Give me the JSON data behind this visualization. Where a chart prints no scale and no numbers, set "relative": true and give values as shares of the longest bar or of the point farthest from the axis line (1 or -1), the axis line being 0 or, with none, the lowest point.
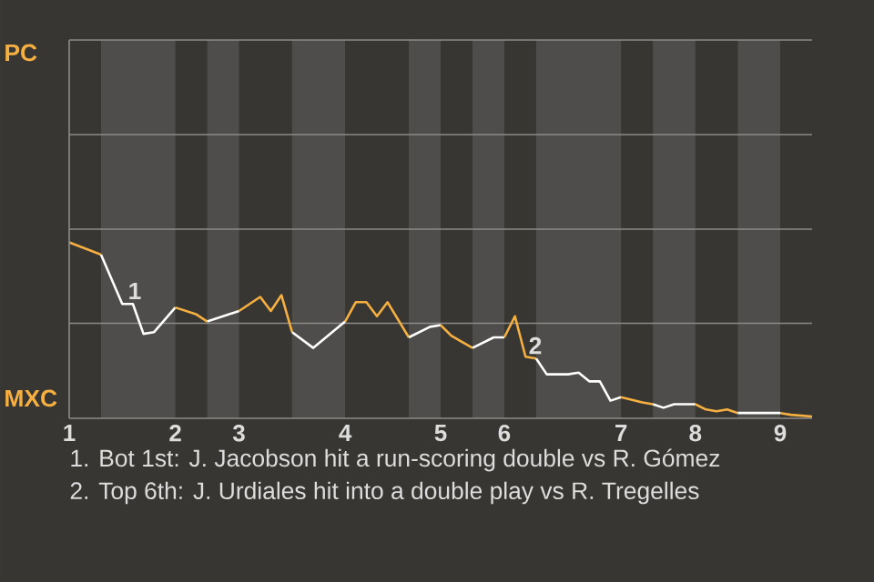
{
  "chart_data": {
    "type": "line",
    "relative": true,
    "ref_lines": [
      {
        "axis": "y",
        "value": 0.54,
        "color": "#8c8b89"
      }
    ],
    "categories": [
      "1",
      null,
      null,
      null,
      null,
      null,
      null,
      null,
      null,
      null,
      "2",
      null,
      null,
      null,
      null,
      null,
      "3",
      null,
      null,
      null,
      null,
      null,
      null,
      null,
      null,
      null,
      "4",
      null,
      null,
      null,
      null,
      null,
      null,
      null,
      null,
      "5",
      null,
      null,
      null,
      null,
      null,
      "6",
      null,
      null,
      null,
      null,
      null,
      null,
      null,
      null,
      null,
      null,
      "7",
      null,
      null,
      null,
      null,
      null,
      null,
      "8",
      null,
      null,
      null,
      null,
      null,
      null,
      null,
      "9",
      null,
      null,
      null
    ],
    "series": [
      {
        "color": "#f5b041",
        "values": [
          1,
          null,
          null,
          0.93,
          null,
          null,
          null,
          null,
          null,
          null,
          null,
          null,
          null,
          null,
          null,
          null,
          null,
          null,
          null,
          null,
          null,
          null,
          null,
          null,
          null,
          null,
          null,
          null,
          null,
          null,
          null,
          null,
          null,
          null,
          null,
          null,
          null,
          null,
          null,
          null,
          null,
          null,
          null,
          null,
          null,
          null,
          null,
          null,
          null,
          null,
          null,
          null,
          null,
          null,
          null,
          null,
          null,
          null,
          null,
          null,
          null,
          null,
          null,
          null,
          null,
          null,
          null,
          null,
          null,
          null,
          null
        ]
      },
      {
        "color": "#ffffff",
        "values": [
          null,
          null,
          null,
          0.93,
          null,
          0.65,
          0.65,
          0.48,
          0.49,
          null,
          0.63,
          null,
          null,
          null,
          null,
          null,
          null,
          null,
          null,
          null,
          null,
          null,
          null,
          null,
          null,
          null,
          null,
          null,
          null,
          null,
          null,
          null,
          null,
          null,
          null,
          null,
          null,
          null,
          null,
          null,
          null,
          null,
          null,
          null,
          null,
          null,
          null,
          null,
          null,
          null,
          null,
          null,
          null,
          null,
          null,
          null,
          null,
          null,
          null,
          null,
          null,
          null,
          null,
          null,
          null,
          null,
          null,
          null,
          null,
          null,
          null
        ]
      },
      {
        "color": "#f5b041",
        "values": [
          null,
          null,
          null,
          null,
          null,
          null,
          null,
          null,
          null,
          null,
          0.63,
          null,
          0.59,
          0.55,
          null,
          null,
          null,
          null,
          null,
          null,
          null,
          null,
          null,
          null,
          null,
          null,
          null,
          null,
          null,
          null,
          null,
          null,
          null,
          null,
          null,
          null,
          null,
          null,
          null,
          null,
          null,
          null,
          null,
          null,
          null,
          null,
          null,
          null,
          null,
          null,
          null,
          null,
          null,
          null,
          null,
          null,
          null,
          null,
          null,
          null,
          null,
          null,
          null,
          null,
          null,
          null,
          null,
          null,
          null,
          null,
          null
        ]
      },
      {
        "color": "#ffffff",
        "values": [
          null,
          null,
          null,
          null,
          null,
          null,
          null,
          null,
          null,
          null,
          null,
          null,
          null,
          0.55,
          null,
          null,
          0.61,
          null,
          null,
          null,
          null,
          null,
          null,
          null,
          null,
          null,
          null,
          null,
          null,
          null,
          null,
          null,
          null,
          null,
          null,
          null,
          null,
          null,
          null,
          null,
          null,
          null,
          null,
          null,
          null,
          null,
          null,
          null,
          null,
          null,
          null,
          null,
          null,
          null,
          null,
          null,
          null,
          null,
          null,
          null,
          null,
          null,
          null,
          null,
          null,
          null,
          null,
          null,
          null,
          null,
          null
        ]
      },
      {
        "color": "#f5b041",
        "values": [
          null,
          null,
          null,
          null,
          null,
          null,
          null,
          null,
          null,
          null,
          null,
          null,
          null,
          null,
          null,
          null,
          0.61,
          null,
          0.69,
          0.61,
          0.7,
          0.49,
          null,
          null,
          null,
          null,
          null,
          null,
          null,
          null,
          null,
          null,
          null,
          null,
          null,
          null,
          null,
          null,
          null,
          null,
          null,
          null,
          null,
          null,
          null,
          null,
          null,
          null,
          null,
          null,
          null,
          null,
          null,
          null,
          null,
          null,
          null,
          null,
          null,
          null,
          null,
          null,
          null,
          null,
          null,
          null,
          null,
          null,
          null,
          null,
          null
        ]
      },
      {
        "color": "#ffffff",
        "values": [
          null,
          null,
          null,
          null,
          null,
          null,
          null,
          null,
          null,
          null,
          null,
          null,
          null,
          null,
          null,
          null,
          null,
          null,
          null,
          null,
          null,
          0.49,
          null,
          0.4,
          null,
          null,
          0.55,
          null,
          null,
          null,
          null,
          null,
          null,
          null,
          null,
          null,
          null,
          null,
          null,
          null,
          null,
          null,
          null,
          null,
          null,
          null,
          null,
          null,
          null,
          null,
          null,
          null,
          null,
          null,
          null,
          null,
          null,
          null,
          null,
          null,
          null,
          null,
          null,
          null,
          null,
          null,
          null,
          null,
          null,
          null,
          null
        ]
      },
      {
        "color": "#f5b041",
        "values": [
          null,
          null,
          null,
          null,
          null,
          null,
          null,
          null,
          null,
          null,
          null,
          null,
          null,
          null,
          null,
          null,
          null,
          null,
          null,
          null,
          null,
          null,
          null,
          null,
          null,
          null,
          0.55,
          0.66,
          0.66,
          0.58,
          0.66,
          null,
          0.46,
          null,
          null,
          null,
          null,
          null,
          null,
          null,
          null,
          null,
          null,
          null,
          null,
          null,
          null,
          null,
          null,
          null,
          null,
          null,
          null,
          null,
          null,
          null,
          null,
          null,
          null,
          null,
          null,
          null,
          null,
          null,
          null,
          null,
          null,
          null,
          null,
          null,
          null
        ]
      },
      {
        "color": "#ffffff",
        "values": [
          null,
          null,
          null,
          null,
          null,
          null,
          null,
          null,
          null,
          null,
          null,
          null,
          null,
          null,
          null,
          null,
          null,
          null,
          null,
          null,
          null,
          null,
          null,
          null,
          null,
          null,
          null,
          null,
          null,
          null,
          null,
          null,
          0.46,
          null,
          0.52,
          0.53,
          null,
          null,
          null,
          null,
          null,
          null,
          null,
          null,
          null,
          null,
          null,
          null,
          null,
          null,
          null,
          null,
          null,
          null,
          null,
          null,
          null,
          null,
          null,
          null,
          null,
          null,
          null,
          null,
          null,
          null,
          null,
          null,
          null,
          null,
          null
        ]
      },
      {
        "color": "#f5b041",
        "values": [
          null,
          null,
          null,
          null,
          null,
          null,
          null,
          null,
          null,
          null,
          null,
          null,
          null,
          null,
          null,
          null,
          null,
          null,
          null,
          null,
          null,
          null,
          null,
          null,
          null,
          null,
          null,
          null,
          null,
          null,
          null,
          null,
          null,
          null,
          null,
          0.53,
          0.47,
          null,
          0.4,
          null,
          null,
          null,
          null,
          null,
          null,
          null,
          null,
          null,
          null,
          null,
          null,
          null,
          null,
          null,
          null,
          null,
          null,
          null,
          null,
          null,
          null,
          null,
          null,
          null,
          null,
          null,
          null,
          null,
          null,
          null,
          null
        ]
      },
      {
        "color": "#ffffff",
        "values": [
          null,
          null,
          null,
          null,
          null,
          null,
          null,
          null,
          null,
          null,
          null,
          null,
          null,
          null,
          null,
          null,
          null,
          null,
          null,
          null,
          null,
          null,
          null,
          null,
          null,
          null,
          null,
          null,
          null,
          null,
          null,
          null,
          null,
          null,
          null,
          null,
          null,
          null,
          0.4,
          null,
          0.46,
          0.46,
          null,
          null,
          null,
          null,
          null,
          null,
          null,
          null,
          null,
          null,
          null,
          null,
          null,
          null,
          null,
          null,
          null,
          null,
          null,
          null,
          null,
          null,
          null,
          null,
          null,
          null,
          null,
          null,
          null
        ]
      },
      {
        "color": "#f5b041",
        "values": [
          null,
          null,
          null,
          null,
          null,
          null,
          null,
          null,
          null,
          null,
          null,
          null,
          null,
          null,
          null,
          null,
          null,
          null,
          null,
          null,
          null,
          null,
          null,
          null,
          null,
          null,
          null,
          null,
          null,
          null,
          null,
          null,
          null,
          null,
          null,
          null,
          null,
          null,
          null,
          null,
          null,
          0.46,
          0.58,
          0.35,
          0.34,
          null,
          null,
          null,
          null,
          null,
          null,
          null,
          null,
          null,
          null,
          null,
          null,
          null,
          null,
          null,
          null,
          null,
          null,
          null,
          null,
          null,
          null,
          null,
          null,
          null,
          null
        ]
      },
      {
        "color": "#ffffff",
        "values": [
          null,
          null,
          null,
          null,
          null,
          null,
          null,
          null,
          null,
          null,
          null,
          null,
          null,
          null,
          null,
          null,
          null,
          null,
          null,
          null,
          null,
          null,
          null,
          null,
          null,
          null,
          null,
          null,
          null,
          null,
          null,
          null,
          null,
          null,
          null,
          null,
          null,
          null,
          null,
          null,
          null,
          null,
          null,
          null,
          0.34,
          0.25,
          null,
          0.25,
          0.26,
          0.21,
          0.21,
          0.1,
          0.12,
          null,
          null,
          null,
          null,
          null,
          null,
          null,
          null,
          null,
          null,
          null,
          null,
          null,
          null,
          null,
          null,
          null,
          null
        ]
      },
      {
        "color": "#f5b041",
        "values": [
          null,
          null,
          null,
          null,
          null,
          null,
          null,
          null,
          null,
          null,
          null,
          null,
          null,
          null,
          null,
          null,
          null,
          null,
          null,
          null,
          null,
          null,
          null,
          null,
          null,
          null,
          null,
          null,
          null,
          null,
          null,
          null,
          null,
          null,
          null,
          null,
          null,
          null,
          null,
          null,
          null,
          null,
          null,
          null,
          null,
          null,
          null,
          null,
          null,
          null,
          null,
          null,
          0.12,
          null,
          0.09,
          0.08,
          null,
          null,
          null,
          null,
          null,
          null,
          null,
          null,
          null,
          null,
          null,
          null,
          null,
          null,
          null
        ]
      },
      {
        "color": "#ffffff",
        "values": [
          null,
          null,
          null,
          null,
          null,
          null,
          null,
          null,
          null,
          null,
          null,
          null,
          null,
          null,
          null,
          null,
          null,
          null,
          null,
          null,
          null,
          null,
          null,
          null,
          null,
          null,
          null,
          null,
          null,
          null,
          null,
          null,
          null,
          null,
          null,
          null,
          null,
          null,
          null,
          null,
          null,
          null,
          null,
          null,
          null,
          null,
          null,
          null,
          null,
          null,
          null,
          null,
          null,
          null,
          null,
          0.08,
          0.06,
          0.08,
          null,
          0.08,
          null,
          null,
          null,
          null,
          null,
          null,
          null,
          null,
          null,
          null,
          null
        ]
      },
      {
        "color": "#f5b041",
        "values": [
          null,
          null,
          null,
          null,
          null,
          null,
          null,
          null,
          null,
          null,
          null,
          null,
          null,
          null,
          null,
          null,
          null,
          null,
          null,
          null,
          null,
          null,
          null,
          null,
          null,
          null,
          null,
          null,
          null,
          null,
          null,
          null,
          null,
          null,
          null,
          null,
          null,
          null,
          null,
          null,
          null,
          null,
          null,
          null,
          null,
          null,
          null,
          null,
          null,
          null,
          null,
          null,
          null,
          null,
          null,
          null,
          null,
          null,
          null,
          0.08,
          0.05,
          0.04,
          0.05,
          0.03,
          null,
          null,
          null,
          null,
          null,
          null,
          null
        ]
      },
      {
        "color": "#ffffff",
        "values": [
          null,
          null,
          null,
          null,
          null,
          null,
          null,
          null,
          null,
          null,
          null,
          null,
          null,
          null,
          null,
          null,
          null,
          null,
          null,
          null,
          null,
          null,
          null,
          null,
          null,
          null,
          null,
          null,
          null,
          null,
          null,
          null,
          null,
          null,
          null,
          null,
          null,
          null,
          null,
          null,
          null,
          null,
          null,
          null,
          null,
          null,
          null,
          null,
          null,
          null,
          null,
          null,
          null,
          null,
          null,
          null,
          null,
          null,
          null,
          null,
          null,
          null,
          null,
          0.03,
          null,
          null,
          null,
          0.03,
          null,
          null,
          null
        ]
      },
      {
        "color": "#f5b041",
        "values": [
          null,
          null,
          null,
          null,
          null,
          null,
          null,
          null,
          null,
          null,
          null,
          null,
          null,
          null,
          null,
          null,
          null,
          null,
          null,
          null,
          null,
          null,
          null,
          null,
          null,
          null,
          null,
          null,
          null,
          null,
          null,
          null,
          null,
          null,
          null,
          null,
          null,
          null,
          null,
          null,
          null,
          null,
          null,
          null,
          null,
          null,
          null,
          null,
          null,
          null,
          null,
          null,
          null,
          null,
          null,
          null,
          null,
          null,
          null,
          null,
          null,
          null,
          null,
          null,
          null,
          null,
          null,
          0.03,
          0.02,
          null,
          0.01
        ]
      }
    ],
    "annotations": [
      "PC",
      "MXC",
      "1",
      "2",
      "1. Bot 1st: J. Jacobson hit a run-scoring double vs R. Gómez",
      "2. Top 6th: J. Urdiales hit into a double play vs R. Tregelles"
    ]
  }
}
